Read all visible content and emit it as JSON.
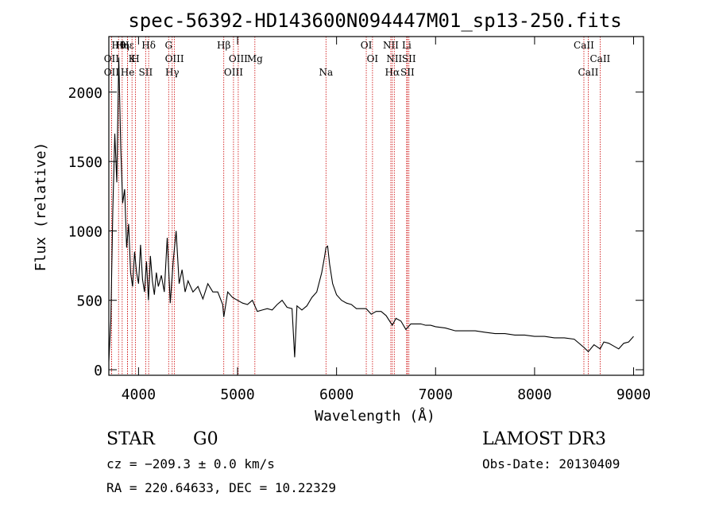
{
  "chart_data": {
    "type": "line",
    "title": "spec-56392-HD143600N094447M01_sp13-250.fits",
    "xlabel": "Wavelength (Å)",
    "ylabel": "Flux (relative)",
    "xlim": [
      3700,
      9100
    ],
    "ylim": [
      -40,
      2400
    ],
    "xticks": [
      4000,
      5000,
      6000,
      7000,
      8000,
      9000
    ],
    "yticks": [
      0,
      500,
      1000,
      1500,
      2000
    ],
    "series": [
      {
        "name": "flux",
        "x": [
          3700,
          3720,
          3740,
          3760,
          3780,
          3800,
          3820,
          3840,
          3860,
          3880,
          3900,
          3920,
          3940,
          3960,
          3980,
          4000,
          4020,
          4040,
          4060,
          4080,
          4100,
          4120,
          4140,
          4160,
          4180,
          4200,
          4230,
          4260,
          4290,
          4320,
          4350,
          4380,
          4410,
          4440,
          4470,
          4500,
          4550,
          4600,
          4650,
          4700,
          4750,
          4800,
          4850,
          4861,
          4900,
          4950,
          5000,
          5050,
          5100,
          5150,
          5200,
          5250,
          5300,
          5350,
          5400,
          5450,
          5500,
          5550,
          5577,
          5600,
          5650,
          5700,
          5750,
          5800,
          5850,
          5880,
          5893,
          5910,
          5930,
          5960,
          6000,
          6050,
          6100,
          6150,
          6200,
          6250,
          6300,
          6350,
          6400,
          6450,
          6500,
          6563,
          6600,
          6650,
          6700,
          6750,
          6800,
          6850,
          6900,
          6950,
          7000,
          7100,
          7200,
          7300,
          7400,
          7500,
          7600,
          7700,
          7800,
          7900,
          8000,
          8100,
          8200,
          8300,
          8400,
          8500,
          8542,
          8600,
          8662,
          8700,
          8750,
          8800,
          8850,
          8900,
          8950,
          9000
        ],
        "values": [
          60,
          350,
          1150,
          1700,
          1350,
          2250,
          1600,
          1200,
          1300,
          880,
          1050,
          700,
          600,
          850,
          700,
          620,
          900,
          650,
          560,
          780,
          500,
          820,
          640,
          540,
          700,
          600,
          680,
          560,
          950,
          480,
          780,
          1000,
          620,
          720,
          560,
          640,
          560,
          600,
          510,
          620,
          560,
          560,
          470,
          380,
          560,
          520,
          500,
          480,
          470,
          500,
          420,
          430,
          440,
          430,
          470,
          500,
          450,
          440,
          90,
          460,
          430,
          460,
          520,
          560,
          700,
          820,
          880,
          890,
          760,
          620,
          540,
          500,
          480,
          470,
          440,
          440,
          440,
          400,
          420,
          420,
          390,
          320,
          370,
          350,
          290,
          330,
          330,
          330,
          320,
          320,
          310,
          300,
          280,
          280,
          280,
          270,
          260,
          260,
          250,
          250,
          240,
          240,
          230,
          230,
          220,
          160,
          130,
          180,
          150,
          200,
          190,
          170,
          150,
          190,
          200,
          240
        ]
      }
    ],
    "line_markers": [
      {
        "label": "Hθ",
        "x": 3798
      },
      {
        "label": "OII",
        "x": 3727
      },
      {
        "label": "OII",
        "x": 3727
      },
      {
        "label": "Hη",
        "x": 3835
      },
      {
        "label": "K",
        "x": 3934
      },
      {
        "label": "He",
        "x": 3889
      },
      {
        "label": "Hε",
        "x": 3889
      },
      {
        "label": "H",
        "x": 3969
      },
      {
        "label": "SII",
        "x": 4072
      },
      {
        "label": "Hδ",
        "x": 4102
      },
      {
        "label": "OIII",
        "x": 4363
      },
      {
        "label": "Hγ",
        "x": 4340
      },
      {
        "label": "G",
        "x": 4304
      },
      {
        "label": "OIII",
        "x": 5007
      },
      {
        "label": "OIII",
        "x": 4959
      },
      {
        "label": "Hβ",
        "x": 4861
      },
      {
        "label": "Mg",
        "x": 5175
      },
      {
        "label": "Na",
        "x": 5893
      },
      {
        "label": "OI",
        "x": 6300
      },
      {
        "label": "OI",
        "x": 6363
      },
      {
        "label": "Hα",
        "x": 6563
      },
      {
        "label": "NII",
        "x": 6548
      },
      {
        "label": "NII",
        "x": 6583
      },
      {
        "label": "SII",
        "x": 6716
      },
      {
        "label": "Li",
        "x": 6708
      },
      {
        "label": "SII",
        "x": 6731
      },
      {
        "label": "CaII",
        "x": 8542
      },
      {
        "label": "CaII",
        "x": 8498
      },
      {
        "label": "CaII",
        "x": 8662
      }
    ]
  },
  "info": {
    "object_type": "STAR",
    "subclass": "G0",
    "survey": "LAMOST DR3",
    "cz": "cz = −209.3 ± 0.0 km/s",
    "obs_date": "Obs-Date: 20130409",
    "coords": "RA = 220.64633, DEC =  10.22329"
  },
  "colors": {
    "spectrum": "#000000",
    "markers": "#cc0000",
    "axes": "#000000"
  }
}
